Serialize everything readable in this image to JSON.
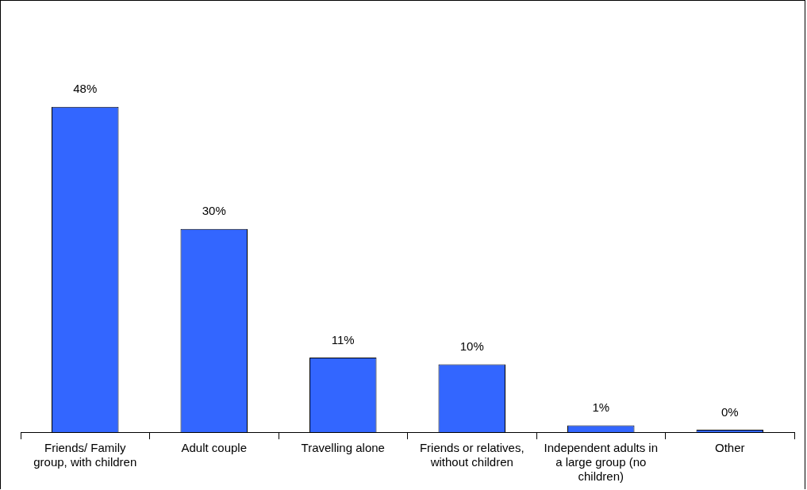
{
  "chart_data": {
    "type": "bar",
    "categories": [
      "Friends/ Family group, with children",
      "Adult couple",
      "Travelling alone",
      "Friends or relatives, without children",
      "Independent adults in a large group (no children)",
      "Other"
    ],
    "values": [
      48,
      30,
      11,
      10,
      1,
      0
    ],
    "color": "#3366ff",
    "data_labels": true,
    "value_labels": [
      "48%",
      "30%",
      "11%",
      "10%",
      "1%",
      "0%"
    ],
    "grid": false,
    "legend": false
  }
}
